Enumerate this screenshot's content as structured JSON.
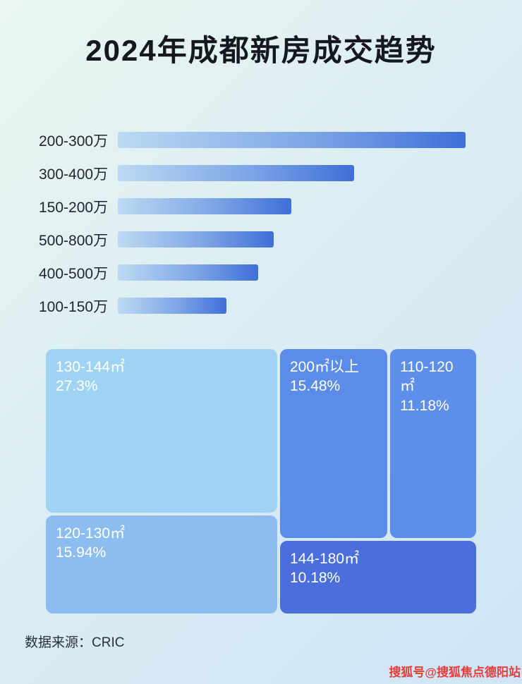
{
  "header": {
    "title": "2024年成都新房成交趋势"
  },
  "bar_chart": {
    "rows": [
      {
        "label": "200-300万",
        "width_pct": 97
      },
      {
        "label": "300-400万",
        "width_pct": 66
      },
      {
        "label": "150-200万",
        "width_pct": 48.5
      },
      {
        "label": "500-800万",
        "width_pct": 43.5
      },
      {
        "label": "400-500万",
        "width_pct": 39.2
      },
      {
        "label": "100-150万",
        "width_pct": 30.4
      }
    ],
    "bar_gradient_start": "#bcdaf2",
    "bar_gradient_end": "#3f6fd8"
  },
  "treemap": {
    "blocks": [
      {
        "label": "130-144㎡",
        "percent": "27.3%",
        "color": "#9fd3f4"
      },
      {
        "label": "200㎡以上",
        "percent": "15.48%",
        "color": "#5b8ce9"
      },
      {
        "label": "110-120㎡",
        "percent": "11.18%",
        "color": "#5d8eea"
      },
      {
        "label": "120-130㎡",
        "percent": "15.94%",
        "color": "#8cbdf0"
      },
      {
        "label": "144-180㎡",
        "percent": "10.18%",
        "color": "#4a6edc"
      }
    ]
  },
  "footer": {
    "source": "数据来源：CRIC"
  },
  "watermark": "搜狐号@搜狐焦点德阳站",
  "chart_data": [
    {
      "type": "bar",
      "orientation": "horizontal",
      "title": "2024年成都新房成交趋势",
      "categories": [
        "200-300万",
        "300-400万",
        "150-200万",
        "500-800万",
        "400-500万",
        "100-150万"
      ],
      "values": [
        100,
        68,
        50,
        45,
        40,
        31
      ],
      "value_note": "relative bar lengths (max = 100); no numeric axis or data labels shown in image",
      "xlabel": "",
      "ylabel": "",
      "grid": false,
      "legend": false
    },
    {
      "type": "treemap",
      "categories": [
        "130-144㎡",
        "200㎡以上",
        "110-120㎡",
        "120-130㎡",
        "144-180㎡"
      ],
      "values": [
        27.3,
        15.48,
        11.18,
        15.94,
        10.18
      ],
      "unit": "%",
      "legend": false
    }
  ]
}
